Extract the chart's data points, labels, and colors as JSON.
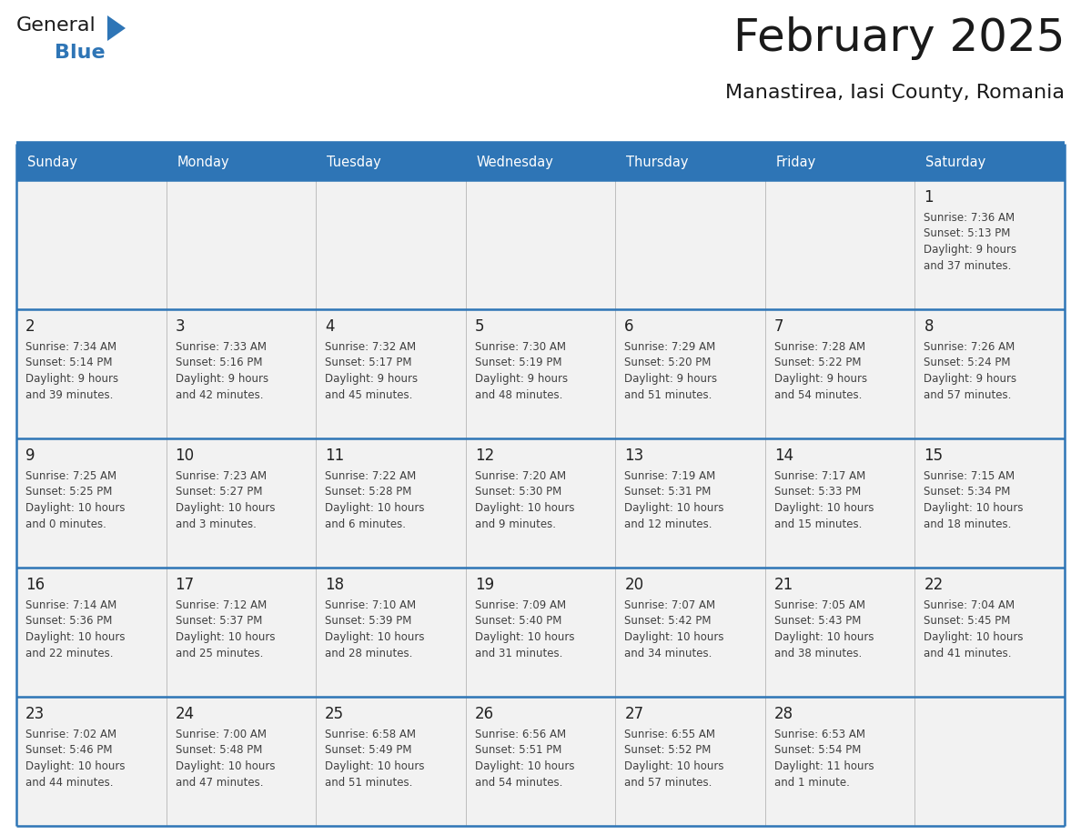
{
  "title": "February 2025",
  "subtitle": "Manastirea, Iasi County, Romania",
  "header_bg": "#2E75B6",
  "header_text_color": "#FFFFFF",
  "cell_bg": "#F2F2F2",
  "cell_bg_empty": "#FFFFFF",
  "row_divider_color": "#2E75B6",
  "col_divider_color": "#FFFFFF",
  "text_color": "#404040",
  "day_num_color": "#222222",
  "days_of_week": [
    "Sunday",
    "Monday",
    "Tuesday",
    "Wednesday",
    "Thursday",
    "Friday",
    "Saturday"
  ],
  "calendar_data": [
    [
      {
        "day": "",
        "info": ""
      },
      {
        "day": "",
        "info": ""
      },
      {
        "day": "",
        "info": ""
      },
      {
        "day": "",
        "info": ""
      },
      {
        "day": "",
        "info": ""
      },
      {
        "day": "",
        "info": ""
      },
      {
        "day": "1",
        "info": "Sunrise: 7:36 AM\nSunset: 5:13 PM\nDaylight: 9 hours\nand 37 minutes."
      }
    ],
    [
      {
        "day": "2",
        "info": "Sunrise: 7:34 AM\nSunset: 5:14 PM\nDaylight: 9 hours\nand 39 minutes."
      },
      {
        "day": "3",
        "info": "Sunrise: 7:33 AM\nSunset: 5:16 PM\nDaylight: 9 hours\nand 42 minutes."
      },
      {
        "day": "4",
        "info": "Sunrise: 7:32 AM\nSunset: 5:17 PM\nDaylight: 9 hours\nand 45 minutes."
      },
      {
        "day": "5",
        "info": "Sunrise: 7:30 AM\nSunset: 5:19 PM\nDaylight: 9 hours\nand 48 minutes."
      },
      {
        "day": "6",
        "info": "Sunrise: 7:29 AM\nSunset: 5:20 PM\nDaylight: 9 hours\nand 51 minutes."
      },
      {
        "day": "7",
        "info": "Sunrise: 7:28 AM\nSunset: 5:22 PM\nDaylight: 9 hours\nand 54 minutes."
      },
      {
        "day": "8",
        "info": "Sunrise: 7:26 AM\nSunset: 5:24 PM\nDaylight: 9 hours\nand 57 minutes."
      }
    ],
    [
      {
        "day": "9",
        "info": "Sunrise: 7:25 AM\nSunset: 5:25 PM\nDaylight: 10 hours\nand 0 minutes."
      },
      {
        "day": "10",
        "info": "Sunrise: 7:23 AM\nSunset: 5:27 PM\nDaylight: 10 hours\nand 3 minutes."
      },
      {
        "day": "11",
        "info": "Sunrise: 7:22 AM\nSunset: 5:28 PM\nDaylight: 10 hours\nand 6 minutes."
      },
      {
        "day": "12",
        "info": "Sunrise: 7:20 AM\nSunset: 5:30 PM\nDaylight: 10 hours\nand 9 minutes."
      },
      {
        "day": "13",
        "info": "Sunrise: 7:19 AM\nSunset: 5:31 PM\nDaylight: 10 hours\nand 12 minutes."
      },
      {
        "day": "14",
        "info": "Sunrise: 7:17 AM\nSunset: 5:33 PM\nDaylight: 10 hours\nand 15 minutes."
      },
      {
        "day": "15",
        "info": "Sunrise: 7:15 AM\nSunset: 5:34 PM\nDaylight: 10 hours\nand 18 minutes."
      }
    ],
    [
      {
        "day": "16",
        "info": "Sunrise: 7:14 AM\nSunset: 5:36 PM\nDaylight: 10 hours\nand 22 minutes."
      },
      {
        "day": "17",
        "info": "Sunrise: 7:12 AM\nSunset: 5:37 PM\nDaylight: 10 hours\nand 25 minutes."
      },
      {
        "day": "18",
        "info": "Sunrise: 7:10 AM\nSunset: 5:39 PM\nDaylight: 10 hours\nand 28 minutes."
      },
      {
        "day": "19",
        "info": "Sunrise: 7:09 AM\nSunset: 5:40 PM\nDaylight: 10 hours\nand 31 minutes."
      },
      {
        "day": "20",
        "info": "Sunrise: 7:07 AM\nSunset: 5:42 PM\nDaylight: 10 hours\nand 34 minutes."
      },
      {
        "day": "21",
        "info": "Sunrise: 7:05 AM\nSunset: 5:43 PM\nDaylight: 10 hours\nand 38 minutes."
      },
      {
        "day": "22",
        "info": "Sunrise: 7:04 AM\nSunset: 5:45 PM\nDaylight: 10 hours\nand 41 minutes."
      }
    ],
    [
      {
        "day": "23",
        "info": "Sunrise: 7:02 AM\nSunset: 5:46 PM\nDaylight: 10 hours\nand 44 minutes."
      },
      {
        "day": "24",
        "info": "Sunrise: 7:00 AM\nSunset: 5:48 PM\nDaylight: 10 hours\nand 47 minutes."
      },
      {
        "day": "25",
        "info": "Sunrise: 6:58 AM\nSunset: 5:49 PM\nDaylight: 10 hours\nand 51 minutes."
      },
      {
        "day": "26",
        "info": "Sunrise: 6:56 AM\nSunset: 5:51 PM\nDaylight: 10 hours\nand 54 minutes."
      },
      {
        "day": "27",
        "info": "Sunrise: 6:55 AM\nSunset: 5:52 PM\nDaylight: 10 hours\nand 57 minutes."
      },
      {
        "day": "28",
        "info": "Sunrise: 6:53 AM\nSunset: 5:54 PM\nDaylight: 11 hours\nand 1 minute."
      },
      {
        "day": "",
        "info": ""
      }
    ]
  ],
  "logo_text_general": "General",
  "logo_text_blue": "Blue",
  "logo_color_general": "#1A1A1A",
  "logo_color_blue": "#2E75B6",
  "logo_triangle_color": "#2E75B6",
  "fig_width": 11.88,
  "fig_height": 9.18,
  "title_fontsize": 36,
  "subtitle_fontsize": 16,
  "header_fontsize": 10.5,
  "day_num_fontsize": 12,
  "info_fontsize": 8.5
}
